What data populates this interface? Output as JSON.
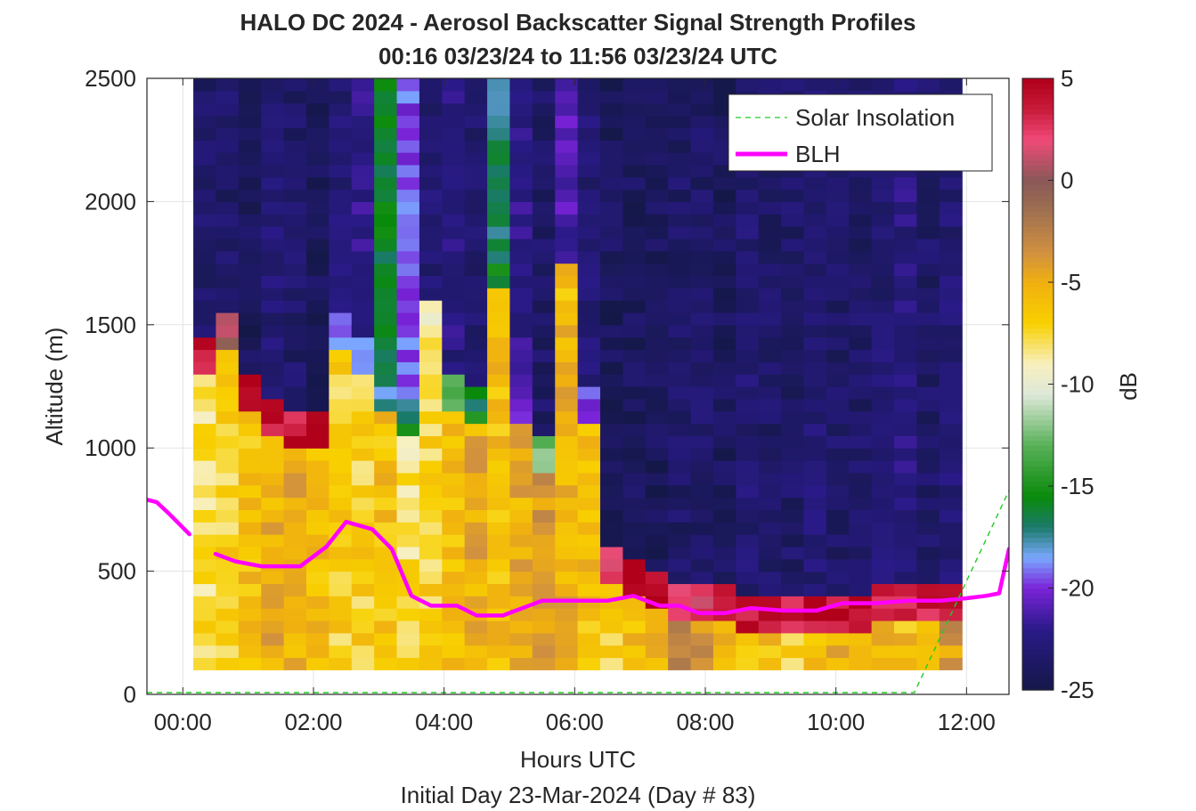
{
  "chart_data": {
    "type": "heatmap",
    "title": "HALO DC 2024 - Aerosol Backscatter Signal Strength Profiles",
    "subtitle": "00:16 03/23/24 to 11:56 03/23/24  UTC",
    "xlabel": "Hours UTC",
    "xlabel2": "Initial Day 23-Mar-2024 (Day # 83)",
    "ylabel": "Altitude (m)",
    "colorbar_label": "dB",
    "xlim": [
      -0.55,
      12.65
    ],
    "ylim": [
      0,
      2500
    ],
    "x_ticks": [
      0,
      2,
      4,
      6,
      8,
      10,
      12
    ],
    "x_tick_labels": [
      "00:00",
      "02:00",
      "04:00",
      "06:00",
      "08:00",
      "10:00",
      "12:00"
    ],
    "y_ticks": [
      0,
      500,
      1000,
      1500,
      2000,
      2500
    ],
    "y_tick_labels": [
      "0",
      "500",
      "1000",
      "1500",
      "2000",
      "2500"
    ],
    "clim": [
      -25,
      5
    ],
    "colorbar_ticks": [
      5,
      0,
      -5,
      -10,
      -15,
      -20,
      -25
    ],
    "colorbar_tick_labels": [
      "5",
      "0",
      "-5",
      "-10",
      "-15",
      "-20",
      "-25"
    ],
    "grid": true,
    "legend": {
      "placement": "top-right",
      "entries": [
        {
          "label": "Solar Insolation",
          "color": "#22cc22",
          "style": "dashed"
        },
        {
          "label": "BLH",
          "color": "#ff00ff",
          "style": "solid"
        }
      ]
    },
    "colormap": [
      [
        -25,
        "#141848"
      ],
      [
        -22,
        "#2a1a88"
      ],
      [
        -20,
        "#7a22d8"
      ],
      [
        -18.5,
        "#7aa8ff"
      ],
      [
        -17,
        "#1a7a6a"
      ],
      [
        -15.5,
        "#0a8a0a"
      ],
      [
        -13,
        "#58b058"
      ],
      [
        -10.5,
        "#dde8d8"
      ],
      [
        -9,
        "#f8f0c0"
      ],
      [
        -7,
        "#f8d000"
      ],
      [
        -5,
        "#f0b010"
      ],
      [
        -3.5,
        "#d09040"
      ],
      [
        -1.5,
        "#a07050"
      ],
      [
        0,
        "#8a5858"
      ],
      [
        2,
        "#f04a78"
      ],
      [
        3.5,
        "#c81a3a"
      ],
      [
        5,
        "#b0001a"
      ]
    ],
    "heatmap": {
      "x_start": 0.16,
      "x_end": 11.93,
      "columns": 34,
      "y_bin_height": 50,
      "surface_gap_bins": 2,
      "profiles": [
        {
          "base": -8,
          "pbl_top": 1450,
          "pbl_value": 3.5,
          "aloft": -23.5
        },
        {
          "base": -7,
          "pbl_top": 1550,
          "pbl_value": 1,
          "aloft": -23.5
        },
        {
          "base": -6,
          "pbl_top": 1300,
          "pbl_value": 3.5,
          "aloft": -24
        },
        {
          "base": -5,
          "pbl_top": 1200,
          "pbl_value": 4,
          "aloft": -23
        },
        {
          "base": -5,
          "pbl_top": 1150,
          "pbl_value": 4,
          "aloft": -23.5
        },
        {
          "base": -6,
          "pbl_top": 1150,
          "pbl_value": 4,
          "aloft": -24
        },
        {
          "base": -7,
          "pbl_top": 1550,
          "pbl_value": -18,
          "aloft": -23
        },
        {
          "base": -7,
          "pbl_top": 1450,
          "pbl_value": -19,
          "aloft": -22
        },
        {
          "base": -6,
          "pbl_top": 1300,
          "pbl_value": -18,
          "aloft": -16
        },
        {
          "base": -8,
          "pbl_top": 1200,
          "pbl_value": -16,
          "aloft": -19.5
        },
        {
          "base": -7,
          "pbl_top": 1600,
          "pbl_value": -10,
          "aloft": -23
        },
        {
          "base": -6,
          "pbl_top": 1300,
          "pbl_value": -14,
          "aloft": -22.5
        },
        {
          "base": -5,
          "pbl_top": 1250,
          "pbl_value": -16,
          "aloft": -23.5
        },
        {
          "base": -6,
          "pbl_top": 1800,
          "pbl_value": -16,
          "aloft": -17
        },
        {
          "base": -5,
          "pbl_top": 1250,
          "pbl_value": -21,
          "aloft": -22
        },
        {
          "base": -4,
          "pbl_top": 1050,
          "pbl_value": -12,
          "aloft": -23.5
        },
        {
          "base": -5,
          "pbl_top": 1750,
          "pbl_value": -6,
          "aloft": -21
        },
        {
          "base": -6,
          "pbl_top": 1250,
          "pbl_value": -19,
          "aloft": -23
        },
        {
          "base": -7,
          "pbl_top": 600,
          "pbl_value": 3,
          "aloft": -24
        },
        {
          "base": -6,
          "pbl_top": 550,
          "pbl_value": 4,
          "aloft": -24
        },
        {
          "base": -5,
          "pbl_top": 500,
          "pbl_value": 4,
          "aloft": -24
        },
        {
          "base": -3,
          "pbl_top": 450,
          "pbl_value": 3,
          "aloft": -23.5
        },
        {
          "base": -4,
          "pbl_top": 450,
          "pbl_value": 2.5,
          "aloft": -23.5
        },
        {
          "base": -6,
          "pbl_top": 450,
          "pbl_value": 4,
          "aloft": -24
        },
        {
          "base": -6,
          "pbl_top": 400,
          "pbl_value": 4,
          "aloft": -23
        },
        {
          "base": -6,
          "pbl_top": 400,
          "pbl_value": 4,
          "aloft": -23.5
        },
        {
          "base": -7,
          "pbl_top": 400,
          "pbl_value": 4,
          "aloft": -23.5
        },
        {
          "base": -6,
          "pbl_top": 400,
          "pbl_value": 4,
          "aloft": -23
        },
        {
          "base": -5,
          "pbl_top": 400,
          "pbl_value": 4,
          "aloft": -23.5
        },
        {
          "base": -6,
          "pbl_top": 400,
          "pbl_value": 4,
          "aloft": -23.5
        },
        {
          "base": -5,
          "pbl_top": 450,
          "pbl_value": 3,
          "aloft": -23
        },
        {
          "base": -6,
          "pbl_top": 450,
          "pbl_value": 3,
          "aloft": -22.5
        },
        {
          "base": -5,
          "pbl_top": 450,
          "pbl_value": 3.5,
          "aloft": -23.5
        },
        {
          "base": -4,
          "pbl_top": 450,
          "pbl_value": 3.5,
          "aloft": -23
        }
      ]
    },
    "series": [
      {
        "name": "BLH",
        "segments": [
          [
            [
              -0.55,
              790
            ],
            [
              -0.4,
              780
            ],
            [
              -0.2,
              730
            ],
            [
              0.1,
              650
            ]
          ],
          [
            [
              0.5,
              570
            ],
            [
              0.8,
              540
            ],
            [
              1.2,
              520
            ],
            [
              1.8,
              520
            ],
            [
              2.2,
              600
            ],
            [
              2.5,
              700
            ],
            [
              2.9,
              670
            ],
            [
              3.2,
              590
            ],
            [
              3.5,
              400
            ],
            [
              3.8,
              360
            ],
            [
              4.2,
              360
            ],
            [
              4.5,
              320
            ],
            [
              4.9,
              320
            ],
            [
              5.5,
              380
            ],
            [
              6.0,
              380
            ],
            [
              6.5,
              380
            ],
            [
              6.9,
              400
            ],
            [
              7.3,
              360
            ],
            [
              7.6,
              360
            ],
            [
              7.9,
              330
            ],
            [
              8.3,
              330
            ],
            [
              8.7,
              350
            ],
            [
              9.2,
              340
            ],
            [
              9.7,
              340
            ],
            [
              10.1,
              370
            ],
            [
              10.6,
              370
            ],
            [
              11.1,
              380
            ],
            [
              11.6,
              380
            ],
            [
              12.0,
              390
            ],
            [
              12.3,
              400
            ],
            [
              12.5,
              410
            ],
            [
              12.65,
              590
            ]
          ]
        ]
      },
      {
        "name": "Solar Insolation",
        "points": [
          [
            -0.55,
            0
          ],
          [
            11.2,
            0
          ],
          [
            12.65,
            820
          ]
        ]
      }
    ]
  }
}
